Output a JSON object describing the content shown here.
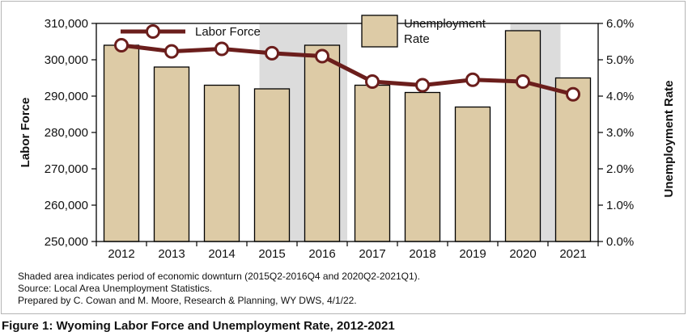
{
  "figure_caption": "Figure 1: Wyoming Labor Force and Unemployment Rate, 2012-2021",
  "notes": [
    "Shaded area indicates period of economic downturn (2015Q2-2016Q4 and 2020Q2-2021Q1).",
    "Source: Local Area Unemployment Statistics.",
    "Prepared by C. Cowan and M. Moore, Research & Planning, WY DWS, 4/1/22."
  ],
  "legend": {
    "line_label": "Labor Force",
    "bar_label_line1": "Unemployment",
    "bar_label_line2": "Rate"
  },
  "colors": {
    "bar_fill": "#ddcba6",
    "bar_stroke": "#000000",
    "line": "#6b1e1c",
    "marker_fill": "#ffffff",
    "shade": "#dcdcdc"
  },
  "chart_data": {
    "type": "bar",
    "categories": [
      "2012",
      "2013",
      "2014",
      "2015",
      "2016",
      "2017",
      "2018",
      "2019",
      "2020",
      "2021"
    ],
    "series": [
      {
        "name": "Unemployment Rate",
        "type": "bar",
        "axis": "right",
        "values": [
          5.4,
          4.8,
          4.3,
          4.2,
          5.4,
          4.3,
          4.1,
          3.7,
          5.8,
          4.5
        ]
      },
      {
        "name": "Labor Force",
        "type": "line",
        "axis": "left",
        "values": [
          304000,
          302300,
          303000,
          301800,
          301000,
          294000,
          293000,
          294500,
          294000,
          290500
        ]
      }
    ],
    "ylabel": "Labor Force",
    "y2label": "Unemployment Rate",
    "ylim": [
      250000,
      310000
    ],
    "yticks": [
      "250,000",
      "260,000",
      "270,000",
      "280,000",
      "290,000",
      "300,000",
      "310,000"
    ],
    "y2lim": [
      0,
      6
    ],
    "y2ticks": [
      "0.0%",
      "1.0%",
      "2.0%",
      "3.0%",
      "4.0%",
      "5.0%",
      "6.0%"
    ],
    "shaded_periods": [
      {
        "from_category": 3,
        "from_fraction": 0.25,
        "to_category": 4,
        "to_fraction": 1.0
      },
      {
        "from_category": 8,
        "from_fraction": 0.25,
        "to_category": 9,
        "to_fraction": 0.25
      }
    ],
    "legend_position": "top"
  }
}
